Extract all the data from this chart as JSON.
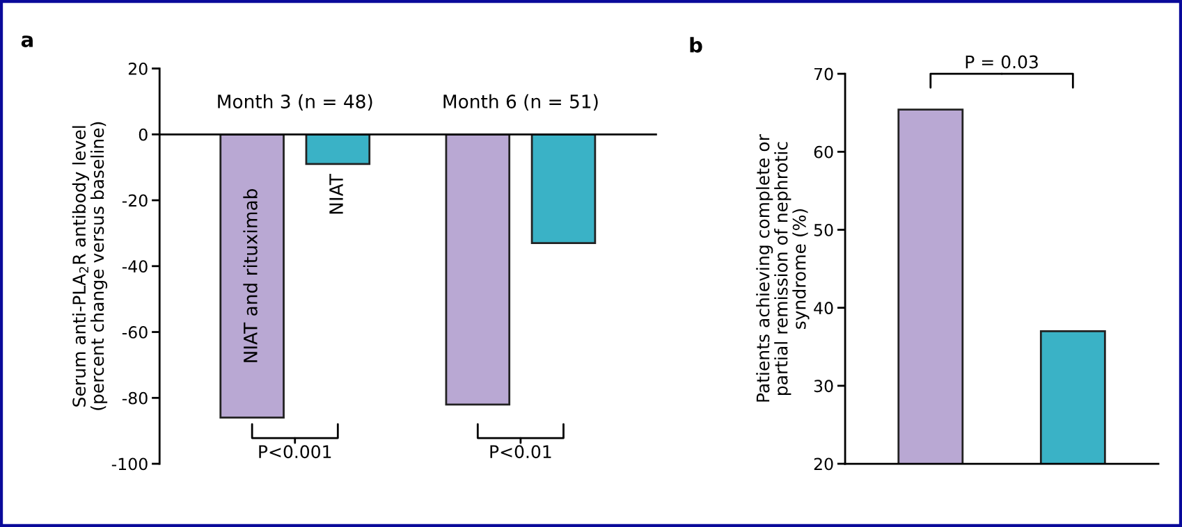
{
  "chart_data": [
    {
      "type": "bar",
      "title": "a",
      "ylabel": "Serum anti-PLA$_{2}$R antibody level\n(percent change versus baseline)",
      "categories": [
        "Month 3 (n = 48)",
        "Month 6 (n = 51)"
      ],
      "series": [
        {
          "name": "NIAT and rituximab",
          "color": "#b9a8d3",
          "values": [
            -86,
            -82
          ]
        },
        {
          "name": "NIAT",
          "color": "#3ab2c6",
          "values": [
            -9,
            -33
          ]
        }
      ],
      "ylim": [
        -100,
        20
      ],
      "yticks": [
        -100,
        -80,
        -60,
        -40,
        -20,
        0,
        20
      ],
      "grid": false,
      "legend": false,
      "annotations": [
        "P<0.001",
        "P<0.01"
      ]
    },
    {
      "type": "bar",
      "title": "b",
      "ylabel": "Patients achieving complete or\npartial remission of nephrotic\nsyndrome (%)",
      "categories": [
        null,
        null
      ],
      "values": [
        65.4,
        37
      ],
      "colors": [
        "#b9a8d3",
        "#3ab2c6"
      ],
      "ylim": [
        20,
        70
      ],
      "yticks": [
        20,
        30,
        40,
        50,
        60,
        70
      ],
      "grid": false,
      "tick_labels": "y",
      "annotations": [
        "P = 0.03"
      ]
    }
  ]
}
